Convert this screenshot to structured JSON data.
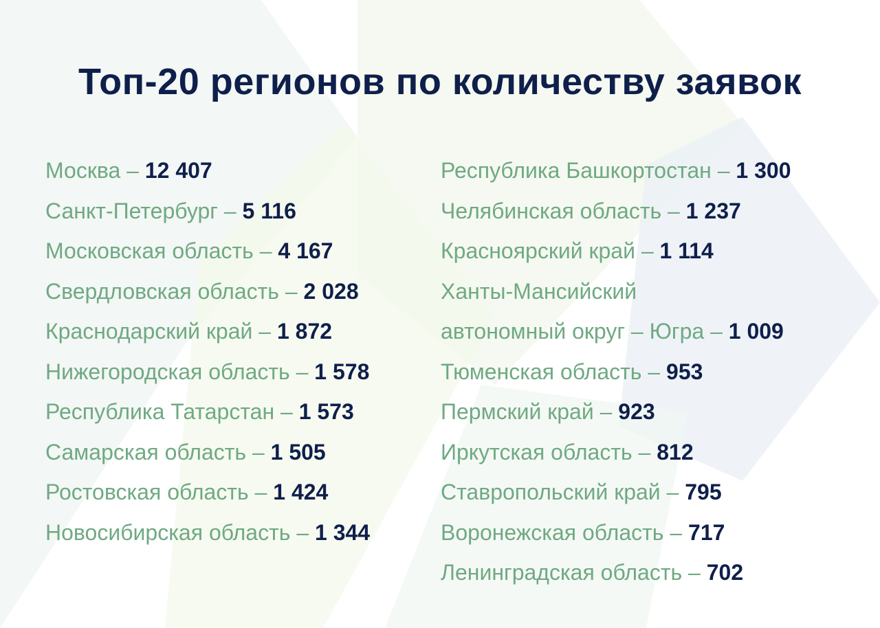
{
  "header": {
    "title": "Топ-20 регионов по количеству заявок"
  },
  "separator": "–",
  "columns": [
    [
      {
        "region": "Москва",
        "value": "12 407"
      },
      {
        "region": "Санкт-Петербург",
        "value": "5 116"
      },
      {
        "region": "Московская область",
        "value": "4 167"
      },
      {
        "region": "Свердловская область",
        "value": "2 028"
      },
      {
        "region": "Краснодарский край",
        "value": "1 872"
      },
      {
        "region": "Нижегородская область",
        "value": "1 578"
      },
      {
        "region": "Республика Татарстан",
        "value": "1 573"
      },
      {
        "region": "Самарская область",
        "value": "1 505"
      },
      {
        "region": "Ростовская область",
        "value": "1 424"
      },
      {
        "region": "Новосибирская область",
        "value": "1 344"
      }
    ],
    [
      {
        "region": "Республика Башкортостан",
        "value": "1 300"
      },
      {
        "region": "Челябинская область",
        "value": "1 237"
      },
      {
        "region": "Красноярский край",
        "value": "1 114"
      },
      {
        "region": [
          "Ханты-Мансийский",
          "автономный округ – Югра"
        ],
        "value": "1 009"
      },
      {
        "region": "Тюменская область",
        "value": "953"
      },
      {
        "region": "Пермский край",
        "value": "923"
      },
      {
        "region": "Иркутская область",
        "value": "812"
      },
      {
        "region": "Ставропольский край",
        "value": "795"
      },
      {
        "region": "Воронежская область",
        "value": "717"
      },
      {
        "region": "Ленинградская область",
        "value": "702"
      }
    ]
  ]
}
